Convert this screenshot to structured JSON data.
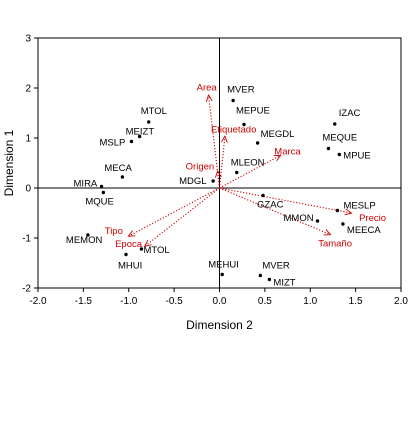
{
  "chart_data": {
    "type": "scatter",
    "title": "",
    "xlabel": "Dimension 2",
    "ylabel": "Dimension 1",
    "xlim": [
      -2.0,
      2.0
    ],
    "ylim": [
      -2,
      3
    ],
    "x_ticks": [
      -2.0,
      -1.5,
      -1.0,
      -0.5,
      0.0,
      0.5,
      1.0,
      1.5,
      2.0
    ],
    "x_tick_labels": [
      "-2.0",
      "-1.5",
      "-1.0",
      "-0.5",
      "0.0",
      "0.5",
      "1.0",
      "1.5",
      "2.0"
    ],
    "y_ticks": [
      -2,
      -1,
      0,
      1,
      2,
      3
    ],
    "y_tick_labels": [
      "-2",
      "-1",
      "0",
      "1",
      "2",
      "3"
    ],
    "grid": false,
    "reference_lines": {
      "x": 0,
      "y": 0
    },
    "points_color": "#000000",
    "vectors_color": "#cc0000",
    "points": [
      {
        "label": "MVER",
        "x": 0.15,
        "y": 1.75
      },
      {
        "label": "MEPUE",
        "x": 0.27,
        "y": 1.27
      },
      {
        "label": "MTOL",
        "x": -0.78,
        "y": 1.32
      },
      {
        "label": "MEIZT",
        "x": -0.88,
        "y": 1.03
      },
      {
        "label": "MSLP",
        "x": -0.97,
        "y": 0.93
      },
      {
        "label": "IZAC",
        "x": 1.27,
        "y": 1.28
      },
      {
        "label": "MEQUE",
        "x": 1.2,
        "y": 0.79
      },
      {
        "label": "MPUE",
        "x": 1.32,
        "y": 0.67
      },
      {
        "label": "MEGDL",
        "x": 0.42,
        "y": 0.9
      },
      {
        "label": "MECA",
        "x": -1.07,
        "y": 0.22
      },
      {
        "label": "MLEON",
        "x": 0.19,
        "y": 0.31
      },
      {
        "label": "MIRA",
        "x": -1.3,
        "y": 0.03
      },
      {
        "label": "MDGL",
        "x": -0.07,
        "y": 0.14
      },
      {
        "label": "MQUE",
        "x": -1.28,
        "y": -0.09
      },
      {
        "label": "GZAC",
        "x": 0.48,
        "y": -0.15
      },
      {
        "label": "MESLP",
        "x": 1.3,
        "y": -0.45
      },
      {
        "label": "MMON",
        "x": 1.08,
        "y": -0.66
      },
      {
        "label": "MEECA",
        "x": 1.36,
        "y": -0.72
      },
      {
        "label": "MEMON",
        "x": -1.45,
        "y": -0.94
      },
      {
        "label": "MTOL",
        "x": -0.86,
        "y": -1.22
      },
      {
        "label": "MHUI",
        "x": -1.03,
        "y": -1.33
      },
      {
        "label": "MEHUI",
        "x": 0.03,
        "y": -1.73
      },
      {
        "label": "MVER",
        "x": 0.45,
        "y": -1.75
      },
      {
        "label": "MIZT",
        "x": 0.55,
        "y": -1.83
      }
    ],
    "vectors": [
      {
        "label": "Area",
        "x": -0.12,
        "y": 1.85
      },
      {
        "label": "Etiquetado",
        "x": 0.06,
        "y": 1.03
      },
      {
        "label": "Marca",
        "x": 0.67,
        "y": 0.65
      },
      {
        "label": "Origen",
        "x": -0.02,
        "y": 0.33
      },
      {
        "label": "Precio",
        "x": 1.45,
        "y": -0.5
      },
      {
        "label": "Tamaño",
        "x": 1.22,
        "y": -0.93
      },
      {
        "label": "Tipo",
        "x": -1.0,
        "y": -0.96
      },
      {
        "label": "Epoca",
        "x": -0.82,
        "y": -1.16
      }
    ]
  }
}
